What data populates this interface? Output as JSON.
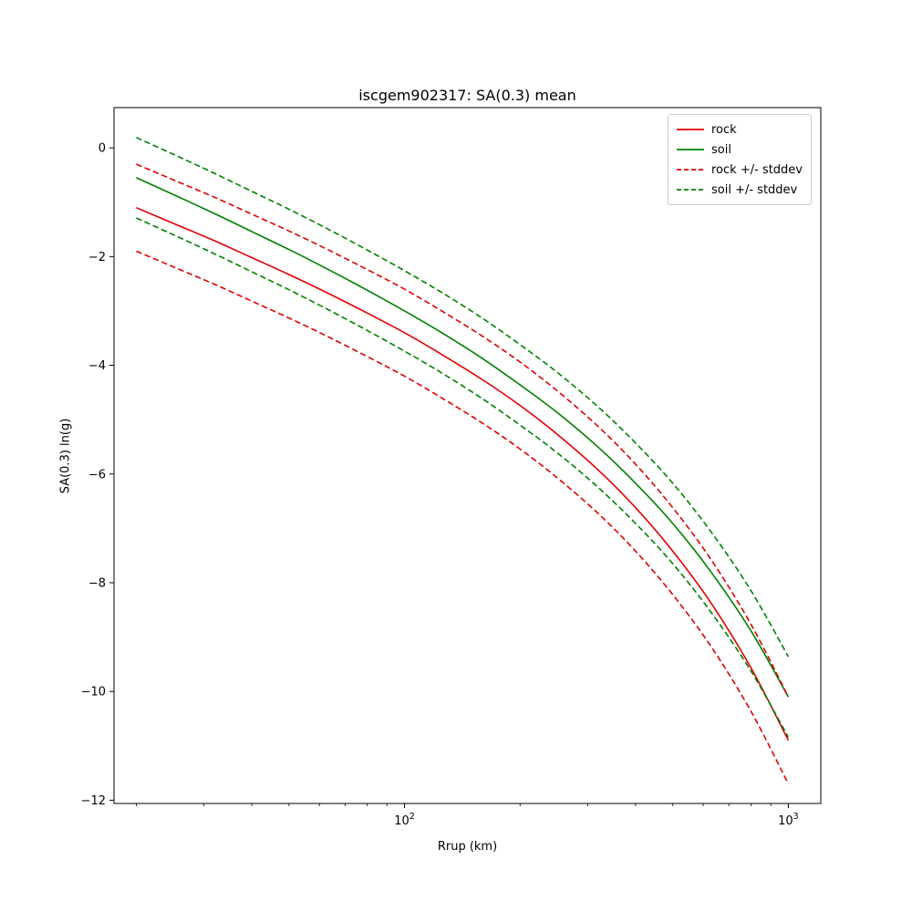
{
  "chart_data": {
    "type": "line",
    "title": "iscgem902317: SA(0.3) mean",
    "xlabel": "Rrup (km)",
    "ylabel": "SA(0.3) ln(g)",
    "xscale": "log",
    "yscale": "linear",
    "grid": false,
    "legend_position": "upper right",
    "xlim": [
      17.5,
      1215
    ],
    "ylim": [
      -12.06,
      0.74
    ],
    "x": [
      20,
      25,
      32,
      40,
      50,
      63,
      80,
      100,
      125,
      160,
      200,
      250,
      320,
      400,
      500,
      630,
      800,
      1000
    ],
    "series": [
      {
        "name": "rock",
        "color": "#e00000",
        "dash": false,
        "lines": [
          [
            -1.1,
            -1.39,
            -1.71,
            -2.02,
            -2.33,
            -2.67,
            -3.04,
            -3.4,
            -3.8,
            -4.27,
            -4.74,
            -5.27,
            -5.93,
            -6.62,
            -7.42,
            -8.38,
            -9.57,
            -10.9
          ]
        ]
      },
      {
        "name": "soil",
        "color": "#008000",
        "dash": false,
        "lines": [
          [
            -0.55,
            -0.86,
            -1.21,
            -1.54,
            -1.87,
            -2.23,
            -2.62,
            -3.0,
            -3.4,
            -3.88,
            -4.36,
            -4.87,
            -5.51,
            -6.17,
            -6.91,
            -7.81,
            -8.89,
            -10.1
          ]
        ]
      },
      {
        "name": "rock +/- stddev",
        "color": "#e00000",
        "dash": true,
        "lines": [
          [
            -0.3,
            -0.59,
            -0.91,
            -1.22,
            -1.53,
            -1.87,
            -2.24,
            -2.6,
            -3.0,
            -3.47,
            -3.94,
            -4.47,
            -5.13,
            -5.82,
            -6.62,
            -7.58,
            -8.77,
            -10.1
          ],
          [
            -1.9,
            -2.19,
            -2.51,
            -2.82,
            -3.13,
            -3.47,
            -3.84,
            -4.2,
            -4.6,
            -5.07,
            -5.54,
            -6.07,
            -6.73,
            -7.42,
            -8.22,
            -9.18,
            -10.37,
            -11.7
          ]
        ]
      },
      {
        "name": "soil +/- stddev",
        "color": "#008000",
        "dash": true,
        "lines": [
          [
            0.19,
            -0.12,
            -0.47,
            -0.8,
            -1.13,
            -1.49,
            -1.88,
            -2.26,
            -2.66,
            -3.14,
            -3.62,
            -4.13,
            -4.77,
            -5.43,
            -6.17,
            -7.07,
            -8.15,
            -9.36
          ],
          [
            -1.29,
            -1.6,
            -1.95,
            -2.28,
            -2.61,
            -2.97,
            -3.36,
            -3.74,
            -4.14,
            -4.62,
            -5.1,
            -5.61,
            -6.25,
            -6.91,
            -7.65,
            -8.55,
            -9.63,
            -10.84
          ]
        ]
      }
    ],
    "stddev": {
      "rock": 0.8,
      "soil": 0.74
    },
    "yticks": {
      "values": [
        0,
        -2,
        -4,
        -6,
        -8,
        -10,
        -12
      ],
      "labels": [
        "0",
        "−2",
        "−4",
        "−6",
        "−8",
        "−10",
        "−12"
      ]
    },
    "xticks_major": [
      {
        "value": 100,
        "base": "10",
        "exp": "2"
      },
      {
        "value": 1000,
        "base": "10",
        "exp": "3"
      }
    ],
    "xticks_minor": [
      20,
      30,
      40,
      50,
      60,
      70,
      80,
      90,
      200,
      300,
      400,
      500,
      600,
      700,
      800,
      900
    ],
    "colors": {
      "rock": "#e00000",
      "soil": "#008000",
      "axes": "#000000",
      "legend_border": "#cccccc",
      "background": "#ffffff"
    }
  }
}
